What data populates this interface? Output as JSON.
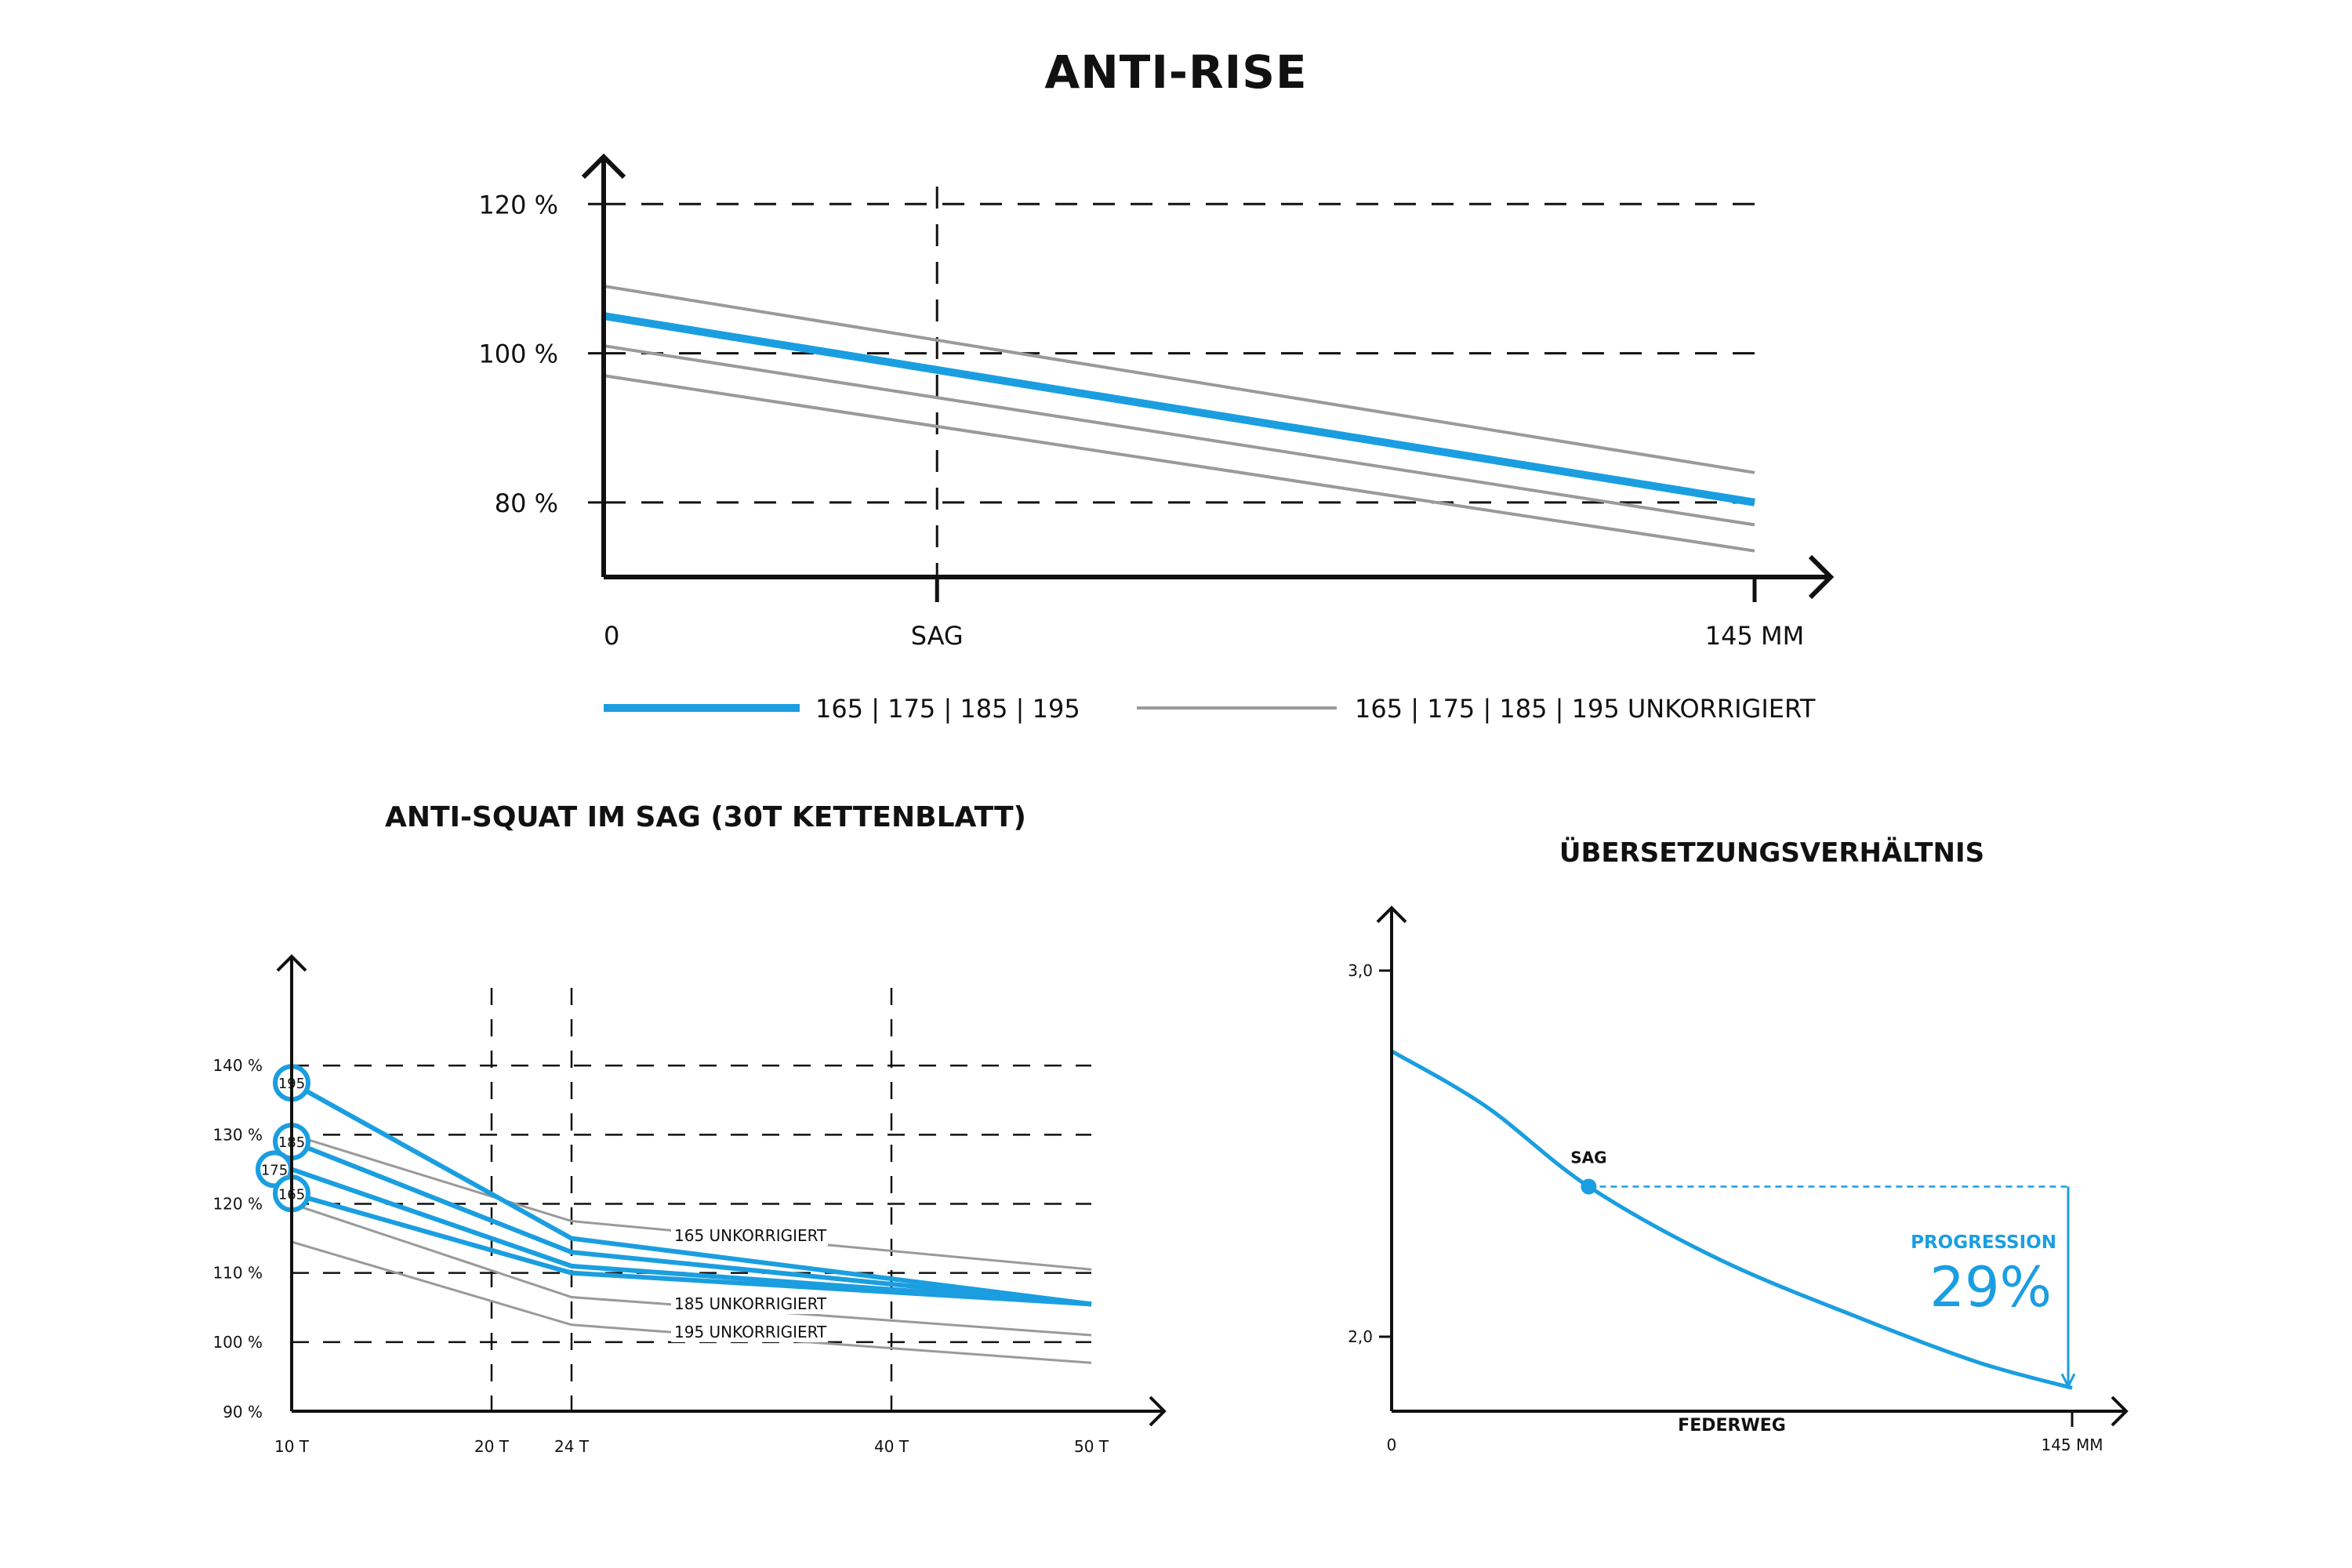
{
  "titles": {
    "anti_rise": "ANTI-RISE",
    "anti_squat": "ANTI-SQUAT IM SAG (30T KETTENBLATT)",
    "leverage": "ÜBERSETZUNGSVERHÄLTNIS"
  },
  "colors": {
    "accent": "#1a9ee0",
    "reference": "#9a9a9a",
    "axis": "#111111"
  },
  "chart_data": [
    {
      "id": "anti_rise",
      "type": "line",
      "title": "ANTI-RISE",
      "x_unit": "MM",
      "xlim": [
        0,
        145
      ],
      "ylim": [
        70,
        140
      ],
      "x_ticks": [
        {
          "value": 0,
          "label": "0"
        },
        {
          "value": 42,
          "label": "SAG"
        },
        {
          "value": 145,
          "label": "145 MM"
        }
      ],
      "y_ticks": [
        {
          "value": 80,
          "label": "80 %"
        },
        {
          "value": 100,
          "label": "100 %"
        },
        {
          "value": 120,
          "label": "120 %"
        }
      ],
      "sag_x": 42,
      "series": [
        {
          "name": "165 | 175 | 185 | 195",
          "style": "highlight",
          "x": [
            0,
            145
          ],
          "values": [
            105,
            80
          ]
        },
        {
          "name": "165 | 175 | 185 | 195 UNKORRIGIERT",
          "style": "reference",
          "x": [
            0,
            145
          ],
          "values": [
            109,
            84
          ]
        },
        {
          "style": "reference",
          "x": [
            0,
            145
          ],
          "values": [
            101,
            77
          ]
        },
        {
          "style": "reference",
          "x": [
            0,
            145
          ],
          "values": [
            97,
            73.5
          ]
        }
      ],
      "legend": [
        {
          "label": "165 | 175 | 185 | 195",
          "style": "highlight"
        },
        {
          "label": "165 | 175 | 185 | 195 UNKORRIGIERT",
          "style": "reference"
        }
      ],
      "grid": "dashed-horizontal"
    },
    {
      "id": "anti_squat",
      "type": "line",
      "title": "ANTI-SQUAT IM SAG (30T KETTENBLATT)",
      "xlim": [
        10,
        50
      ],
      "ylim": [
        90,
        150
      ],
      "x_ticks": [
        {
          "value": 10,
          "label": "10 T"
        },
        {
          "value": 20,
          "label": "20 T"
        },
        {
          "value": 24,
          "label": "24 T"
        },
        {
          "value": 40,
          "label": "40 T"
        },
        {
          "value": 50,
          "label": "50 T"
        }
      ],
      "y_ticks": [
        {
          "value": 90,
          "label": "90 %"
        },
        {
          "value": 100,
          "label": "100 %"
        },
        {
          "value": 110,
          "label": "110 %"
        },
        {
          "value": 120,
          "label": "120 %"
        },
        {
          "value": 130,
          "label": "130 %"
        },
        {
          "value": 140,
          "label": "140 %"
        }
      ],
      "vertical_guides": [
        20,
        24,
        40
      ],
      "x": [
        10,
        24,
        50
      ],
      "series": [
        {
          "name": "195",
          "style": "highlight",
          "values": [
            137.5,
            115,
            105.5
          ]
        },
        {
          "name": "185",
          "style": "highlight",
          "values": [
            129,
            113,
            105.5
          ]
        },
        {
          "name": "175",
          "style": "highlight",
          "values": [
            125,
            111,
            105.5
          ]
        },
        {
          "name": "165",
          "style": "highlight",
          "values": [
            121.5,
            110,
            105.5
          ]
        },
        {
          "name": "165 UNKORRIGIERT",
          "style": "reference",
          "values": [
            130,
            117.5,
            110.5
          ]
        },
        {
          "name": "185 UNKORRIGIERT",
          "style": "reference",
          "values": [
            120,
            106.5,
            101
          ]
        },
        {
          "name": "195 UNKORRIGIERT",
          "style": "reference",
          "values": [
            114.5,
            102.5,
            97
          ]
        }
      ],
      "grid": "dashed-horizontal"
    },
    {
      "id": "leverage",
      "type": "line",
      "title": "ÜBERSETZUNGSVERHÄLTNIS",
      "xlabel": "FEDERWEG",
      "xlim": [
        0,
        145
      ],
      "ylim": [
        1.8,
        3.2
      ],
      "x_ticks": [
        {
          "value": 0,
          "label": "0"
        },
        {
          "value": 145,
          "label": "145 MM"
        }
      ],
      "y_ticks": [
        {
          "value": 2.0,
          "label": "2,0"
        },
        {
          "value": 3.0,
          "label": "3,0"
        }
      ],
      "series": [
        {
          "x": [
            0,
            20,
            42,
            70,
            100,
            125,
            145
          ],
          "values": [
            2.78,
            2.63,
            2.41,
            2.21,
            2.05,
            1.93,
            1.86
          ]
        }
      ],
      "sag": {
        "label": "SAG",
        "x": 42,
        "y": 2.41
      },
      "progression": {
        "label": "PROGRESSION",
        "value": "29%",
        "from": 2.41,
        "to": 1.86
      }
    }
  ]
}
